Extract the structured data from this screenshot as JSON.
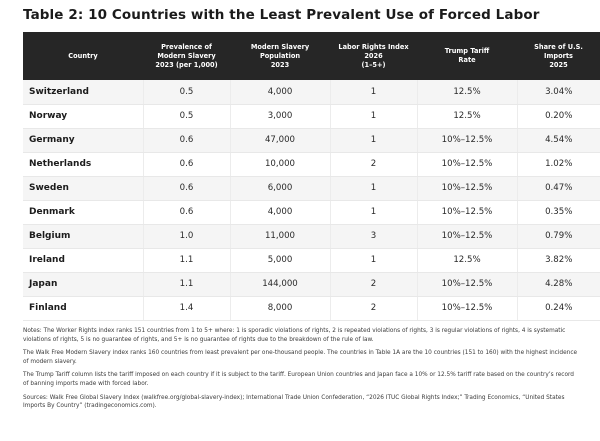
{
  "title": "Table 2:  10 Countries with the Least Prevalent Use of Forced Labor",
  "table": {
    "headers": [
      [
        "Country"
      ],
      [
        "Prevalence of",
        "Modern Slavery",
        "2023 (per 1,000)"
      ],
      [
        "Modern Slavery",
        "Population",
        "2023"
      ],
      [
        "Labor Rights Index",
        "2026",
        "(1–5+)"
      ],
      [
        "Trump Tariff",
        "Rate"
      ],
      [
        "Share of U.S.",
        "Imports",
        "2025"
      ]
    ],
    "rows": [
      [
        "Switzerland",
        "0.5",
        "4,000",
        "1",
        "12.5%",
        "3.04%"
      ],
      [
        "Norway",
        "0.5",
        "3,000",
        "1",
        "12.5%",
        "0.20%"
      ],
      [
        "Germany",
        "0.6",
        "47,000",
        "1",
        "10%–12.5%",
        "4.54%"
      ],
      [
        "Netherlands",
        "0.6",
        "10,000",
        "2",
        "10%–12.5%",
        "1.02%"
      ],
      [
        "Sweden",
        "0.6",
        "6,000",
        "1",
        "10%–12.5%",
        "0.47%"
      ],
      [
        "Denmark",
        "0.6",
        "4,000",
        "1",
        "10%–12.5%",
        "0.35%"
      ],
      [
        "Belgium",
        "1.0",
        "11,000",
        "3",
        "10%–12.5%",
        "0.79%"
      ],
      [
        "Ireland",
        "1.1",
        "5,000",
        "1",
        "12.5%",
        "3.82%"
      ],
      [
        "Japan",
        "1.1",
        "144,000",
        "2",
        "10%–12.5%",
        "4.28%"
      ],
      [
        "Finland",
        "1.4",
        "8,000",
        "2",
        "10%–12.5%",
        "0.24%"
      ]
    ]
  },
  "notes": [
    "Notes: The Worker Rights index ranks 151 countries from 1 to 5+ where: 1 is sporadic violations of rights, 2 is repeated violations of rights, 3 is regular violations of rights, 4 is systematic violations of rights, 5 is no guarantee of rights, and 5+ is no guarantee of rights due to the breakdown of the rule of law.",
    "The Walk Free Modern Slavery index ranks 160 countries from least prevalent per one-thousand people. The countries in Table 1A are the 10 countries (151 to 160) with the highest incidence of modern slavery.",
    "The Trump Tariff column lists the tariff imposed on each country if it is subject to the tariff. European Union countries and Japan face a 10% or 12.5% tariff rate based on the country’s record of banning imports made with forced labor.",
    "Sources: Walk Free Global Slavery Index (walkfree.org/global-slavery-index); International Trade Union Confederation, “2026 ITUC Global Rights Index;” Trading Economics, “United States Imports By Country” (tradingeconomics.com)."
  ]
}
